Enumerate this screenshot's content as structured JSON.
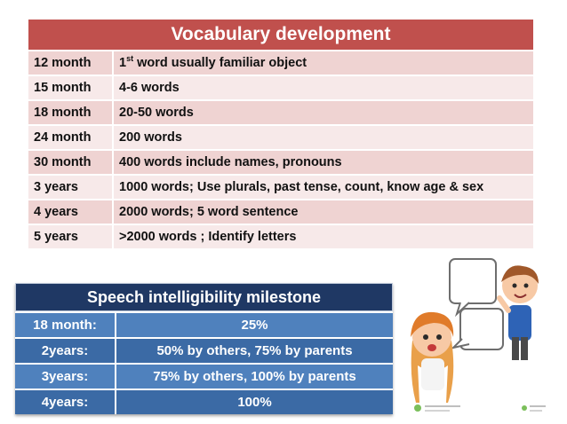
{
  "vocabulary": {
    "title": "Vocabulary development",
    "rows": [
      {
        "age": "12 month",
        "desc_prefix": "1",
        "desc_sup": "st",
        "desc": " word usually familiar object"
      },
      {
        "age": "15 month",
        "desc": "4-6 words"
      },
      {
        "age": "18 month",
        "desc": "20-50 words"
      },
      {
        "age": "24 month",
        "desc": "200 words"
      },
      {
        "age": "30 month",
        "desc": "400 words include names, pronouns"
      },
      {
        "age": "3 years",
        "desc": "1000 words; Use plurals, past tense, count, know age & sex"
      },
      {
        "age": "4 years",
        "desc": "2000 words; 5 word sentence"
      },
      {
        "age": "5 years",
        "desc": ">2000 words ; Identify letters"
      }
    ]
  },
  "intelligibility": {
    "title": "Speech intelligibility milestone",
    "rows": [
      {
        "age": "18 month:",
        "value": "25%"
      },
      {
        "age": "2years:",
        "value": "50% by others, 75% by parents"
      },
      {
        "age": "3years:",
        "value": "75% by others, 100% by parents"
      },
      {
        "age": "4years:",
        "value": "100%"
      }
    ]
  },
  "colors": {
    "vocab_header": "#c0504d",
    "intel_header": "#1f3864",
    "intel_row": "#4f81bd"
  },
  "illustration": {
    "icons": [
      "girl-character",
      "boy-character",
      "speech-bubble"
    ]
  }
}
